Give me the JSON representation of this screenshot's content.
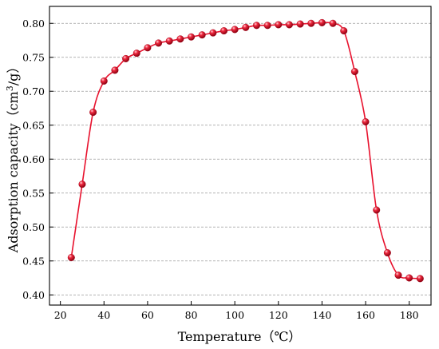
{
  "chart_data": {
    "type": "line",
    "xlabel": "Temperature（℃）",
    "ylabel": {
      "prefix": "Adsorption capacity（cm",
      "sup": "3",
      "suffix": "/g）"
    },
    "xlim": [
      15,
      190
    ],
    "ylim": [
      0.385,
      0.825
    ],
    "xticks": [
      20,
      40,
      60,
      80,
      100,
      120,
      140,
      160,
      180
    ],
    "yticks": [
      0.4,
      0.45,
      0.5,
      0.55,
      0.6,
      0.65,
      0.7,
      0.75,
      0.8
    ],
    "ytick_labels": [
      "0.40",
      "0.45",
      "0.50",
      "0.55",
      "0.60",
      "0.65",
      "0.70",
      "0.75",
      "0.80"
    ],
    "grid": "horizontal-dashed",
    "series": [
      {
        "color": "#e8112d",
        "x": [
          25,
          30,
          35,
          40,
          45,
          50,
          55,
          60,
          65,
          70,
          75,
          80,
          85,
          90,
          95,
          100,
          105,
          110,
          115,
          120,
          125,
          130,
          135,
          140,
          145,
          150,
          155,
          160,
          165,
          170,
          175,
          180,
          185
        ],
        "y": [
          0.455,
          0.563,
          0.669,
          0.715,
          0.731,
          0.748,
          0.756,
          0.764,
          0.771,
          0.774,
          0.777,
          0.78,
          0.783,
          0.786,
          0.789,
          0.791,
          0.794,
          0.797,
          0.797,
          0.798,
          0.798,
          0.799,
          0.8,
          0.801,
          0.8,
          0.789,
          0.729,
          0.655,
          0.525,
          0.462,
          0.429,
          0.425,
          0.424
        ]
      }
    ]
  }
}
